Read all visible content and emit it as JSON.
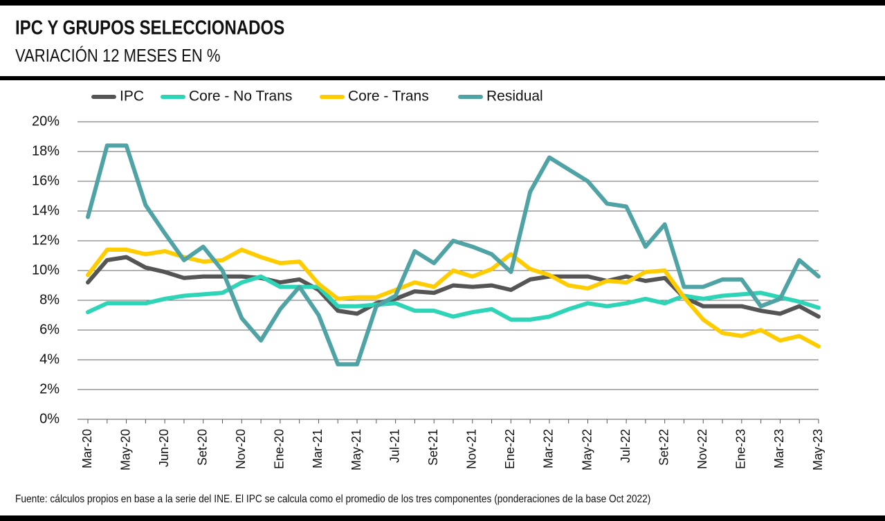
{
  "chart_data": {
    "type": "line",
    "title": "IPC Y GRUPOS SELECCIONADOS",
    "subtitle": "VARIACIÓN 12 MESES EN %",
    "source": "Fuente: cálculos propios en base a la serie del INE. El IPC se calcula como el promedio de los tres componentes (ponderaciones de la base Oct 2022)",
    "categories": [
      "Mar-20",
      null,
      "May-20",
      null,
      "Jun-20",
      null,
      "Set-20",
      null,
      "Nov-20",
      null,
      "Ene-20",
      null,
      "Mar-21",
      null,
      "May-21",
      null,
      "Jul-21",
      null,
      "Set-21",
      null,
      "Nov-21",
      null,
      "Ene-22",
      null,
      "Mar-22",
      null,
      "May-22",
      null,
      "Jul-22",
      null,
      "Set-22",
      null,
      "Nov-22",
      null,
      "Ene-23",
      null,
      "Mar-23",
      null,
      "May-23"
    ],
    "series": [
      {
        "name": "IPC",
        "color": "#555555",
        "values": [
          9.2,
          10.7,
          10.9,
          10.2,
          9.9,
          9.5,
          9.6,
          9.6,
          9.6,
          9.5,
          9.2,
          9.4,
          8.7,
          7.3,
          7.1,
          7.8,
          8.1,
          8.6,
          8.5,
          9.0,
          8.9,
          9.0,
          8.7,
          9.4,
          9.6,
          9.6,
          9.6,
          9.3,
          9.6,
          9.3,
          9.5,
          8.2,
          7.6,
          7.6,
          7.6,
          7.3,
          7.1,
          7.6,
          6.9
        ]
      },
      {
        "name": "Core - No Trans",
        "color": "#2dd4b6",
        "values": [
          7.2,
          7.8,
          7.8,
          7.8,
          8.1,
          8.3,
          8.4,
          8.5,
          9.2,
          9.6,
          8.9,
          8.9,
          8.9,
          7.6,
          7.6,
          7.7,
          7.8,
          7.3,
          7.3,
          6.9,
          7.2,
          7.4,
          6.7,
          6.7,
          6.9,
          7.4,
          7.8,
          7.6,
          7.8,
          8.1,
          7.8,
          8.3,
          8.1,
          8.3,
          8.4,
          8.5,
          8.2,
          7.9,
          7.5
        ]
      },
      {
        "name": "Core - Trans",
        "color": "#ffcc00",
        "values": [
          9.7,
          11.4,
          11.4,
          11.1,
          11.3,
          10.9,
          10.6,
          10.7,
          11.4,
          10.9,
          10.5,
          10.6,
          9.1,
          8.1,
          8.2,
          8.2,
          8.7,
          9.2,
          8.9,
          10.0,
          9.6,
          10.1,
          11.1,
          10.1,
          9.7,
          9.0,
          8.8,
          9.3,
          9.2,
          9.9,
          10.0,
          8.2,
          6.7,
          5.8,
          5.6,
          6.0,
          5.3,
          5.6,
          4.9
        ]
      },
      {
        "name": "Residual",
        "color": "#4fa3a5",
        "values": [
          13.6,
          18.4,
          18.4,
          14.4,
          12.5,
          10.7,
          11.6,
          10.0,
          6.8,
          5.3,
          7.4,
          8.9,
          7.0,
          3.7,
          3.7,
          7.6,
          8.3,
          11.3,
          10.5,
          12.0,
          11.6,
          11.1,
          9.9,
          15.3,
          17.6,
          16.8,
          16.0,
          14.5,
          14.3,
          11.6,
          13.1,
          8.9,
          8.9,
          9.4,
          9.4,
          7.6,
          8.1,
          10.7,
          9.6
        ]
      }
    ],
    "ylim": [
      0,
      20
    ],
    "yticks": [
      {
        "value": 0,
        "label": "0%"
      },
      {
        "value": 2,
        "label": "2%"
      },
      {
        "value": 4,
        "label": "4%"
      },
      {
        "value": 6,
        "label": "6%"
      },
      {
        "value": 8,
        "label": "8%"
      },
      {
        "value": 10,
        "label": "10%"
      },
      {
        "value": 12,
        "label": "12%"
      },
      {
        "value": 14,
        "label": "14%"
      },
      {
        "value": 16,
        "label": "16%"
      },
      {
        "value": 18,
        "label": "18%"
      },
      {
        "value": 20,
        "label": "20%"
      }
    ],
    "grid": true,
    "legend": "top"
  }
}
